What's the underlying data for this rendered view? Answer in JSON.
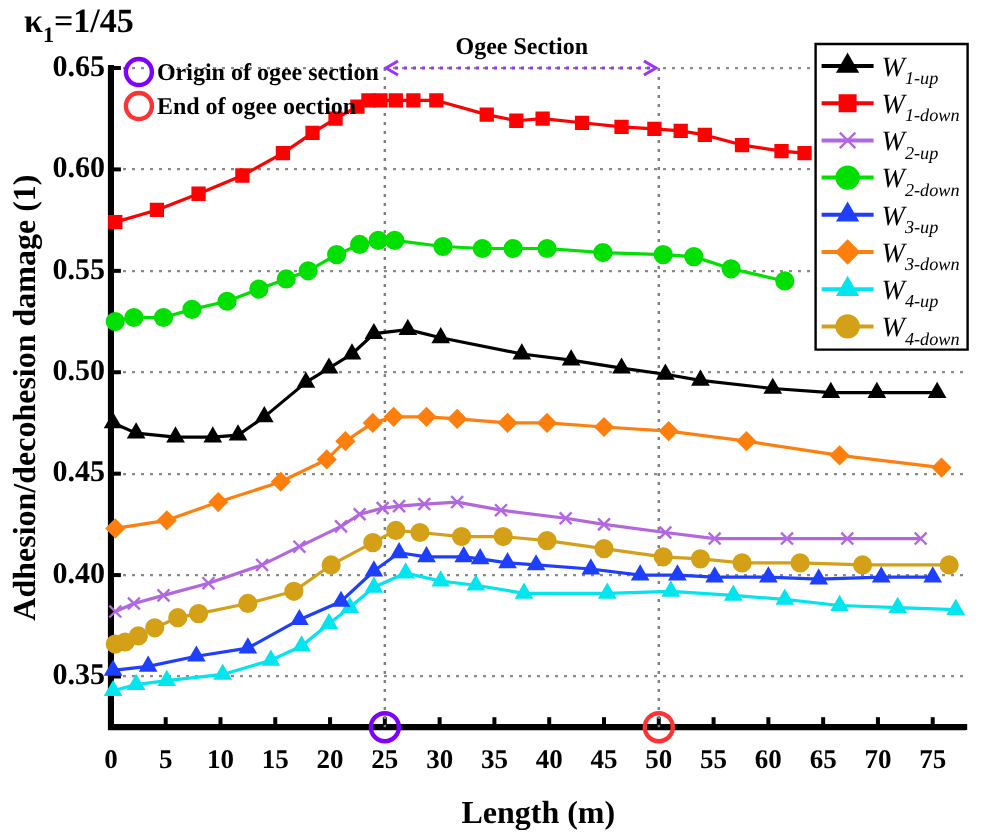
{
  "chart_data": {
    "type": "line",
    "xlabel": "Length (m)",
    "ylabel": "Adhesion/decohesion damage (1)",
    "xlim": [
      0,
      78
    ],
    "xticks": [
      0,
      5,
      10,
      15,
      20,
      25,
      30,
      35,
      40,
      45,
      50,
      55,
      60,
      65,
      70,
      75
    ],
    "ylim": [
      0.325,
      0.65
    ],
    "yticks": [
      0.35,
      {
        "value": 0.4,
        "label": "0.40"
      },
      0.45,
      {
        "value": 0.5,
        "label": "0.50"
      },
      0.55,
      {
        "value": 0.6,
        "label": "0.60"
      },
      0.65
    ],
    "grid": "y",
    "legend": "top right",
    "line_style": "solid",
    "annotations": [
      "κ$_{1}$=1/45",
      "Ogee Section"
    ],
    "ref_lines": [
      {
        "axis": "x",
        "value": 25,
        "line_style": "dotted",
        "color": "#808080"
      },
      {
        "axis": "x",
        "value": 50,
        "line_style": "dotted",
        "color": "#808080"
      }
    ],
    "series": [
      {
        "name": "W$_{1-up}$",
        "color": "#000000",
        "marker": "triangle",
        "x": [
          0.2,
          2.3,
          5.9,
          9.3,
          11.6,
          14,
          17.8,
          19.9,
          22,
          24,
          27.1,
          30.1,
          37.5,
          42,
          46.6,
          50.6,
          53.8,
          60.4,
          65.7,
          69.9,
          75.4
        ],
        "values": [
          0.475,
          0.47,
          0.468,
          0.468,
          0.469,
          0.478,
          0.495,
          0.502,
          0.509,
          0.519,
          0.521,
          0.517,
          0.509,
          0.506,
          0.502,
          0.499,
          0.496,
          0.492,
          0.49,
          0.49,
          0.49
        ]
      },
      {
        "name": "W$_{1-down}$",
        "color": "#ff0000",
        "marker": "square",
        "x": [
          0.4,
          4.2,
          8,
          12,
          15.7,
          18.4,
          20.5,
          22.5,
          23.5,
          24.6,
          26,
          27.6,
          29.7,
          34.3,
          37,
          39.4,
          43,
          46.6,
          49.6,
          52,
          54.2,
          57.6,
          61.2,
          63.3
        ],
        "values": [
          0.574,
          0.58,
          0.588,
          0.597,
          0.608,
          0.618,
          0.625,
          0.631,
          0.634,
          0.634,
          0.634,
          0.634,
          0.634,
          0.627,
          0.624,
          0.625,
          0.623,
          0.621,
          0.62,
          0.619,
          0.617,
          0.612,
          0.609,
          0.608
        ]
      },
      {
        "name": "W$_{2-up}$",
        "color": "#b266e0",
        "marker": "cross",
        "x": [
          0.4,
          2.1,
          4.8,
          8.9,
          13.8,
          17.2,
          21,
          22.7,
          24.8,
          26.3,
          28.6,
          31.6,
          35.6,
          41.5,
          45,
          50.6,
          55.1,
          61.7,
          67.2,
          73.9
        ],
        "values": [
          0.382,
          0.386,
          0.39,
          0.396,
          0.405,
          0.414,
          0.424,
          0.43,
          0.433,
          0.434,
          0.435,
          0.436,
          0.432,
          0.428,
          0.425,
          0.421,
          0.418,
          0.418,
          0.418,
          0.418
        ]
      },
      {
        "name": "W$_{2-down}$",
        "color": "#00e000",
        "marker": "circle",
        "x": [
          0.4,
          2.1,
          4.8,
          7.4,
          10.6,
          13.5,
          16,
          18,
          20.6,
          22.7,
          24.4,
          25.9,
          30.3,
          33.9,
          36.7,
          39.8,
          44.9,
          50.4,
          53.2,
          56.6,
          61.5
        ],
        "values": [
          0.525,
          0.527,
          0.527,
          0.531,
          0.535,
          0.541,
          0.546,
          0.55,
          0.558,
          0.563,
          0.565,
          0.565,
          0.562,
          0.561,
          0.561,
          0.561,
          0.559,
          0.558,
          0.557,
          0.551,
          0.545
        ]
      },
      {
        "name": "W$_{3-up}$",
        "color": "#1f3fff",
        "marker": "triangle",
        "x": [
          0.2,
          3.4,
          7.8,
          12.5,
          17.2,
          21,
          24,
          26.3,
          28.8,
          32.2,
          33.7,
          36.2,
          38.8,
          43.8,
          48.3,
          51.7,
          55.1,
          60,
          64.6,
          70.3,
          75
        ],
        "values": [
          0.353,
          0.355,
          0.36,
          0.364,
          0.378,
          0.387,
          0.402,
          0.411,
          0.409,
          0.409,
          0.408,
          0.406,
          0.405,
          0.403,
          0.4,
          0.4,
          0.399,
          0.399,
          0.398,
          0.399,
          0.399
        ]
      },
      {
        "name": "W$_{3-down}$",
        "color": "#ff7f0e",
        "marker": "diamond",
        "x": [
          0.4,
          5.1,
          9.8,
          15.5,
          19.7,
          21.4,
          23.9,
          25.8,
          28.8,
          31.6,
          36.2,
          39.8,
          45,
          50.9,
          58,
          66.5,
          75.8
        ],
        "values": [
          0.423,
          0.427,
          0.436,
          0.446,
          0.457,
          0.466,
          0.475,
          0.478,
          0.478,
          0.477,
          0.475,
          0.475,
          0.473,
          0.471,
          0.466,
          0.459,
          0.453
        ]
      },
      {
        "name": "W$_{4-up}$",
        "color": "#00e5ee",
        "marker": "triangle",
        "x": [
          0.2,
          2.3,
          5.1,
          10.2,
          14.6,
          17.4,
          19.9,
          21.8,
          24,
          26.9,
          30.1,
          33.3,
          37.7,
          45.3,
          51.1,
          56.8,
          61.5,
          66.5,
          71.8,
          77.1
        ],
        "values": [
          0.343,
          0.346,
          0.348,
          0.351,
          0.358,
          0.365,
          0.376,
          0.384,
          0.394,
          0.401,
          0.397,
          0.395,
          0.391,
          0.391,
          0.392,
          0.39,
          0.388,
          0.385,
          0.384,
          0.383
        ]
      },
      {
        "name": "W$_{4-down}$",
        "color": "#d4a017",
        "marker": "circle",
        "x": [
          0.4,
          1.3,
          2.5,
          4,
          6.1,
          8,
          12.5,
          16.7,
          20.1,
          23.9,
          26,
          28.2,
          32,
          35.8,
          39.8,
          45,
          50.4,
          53.8,
          57.6,
          62.9,
          68.6,
          76.5
        ],
        "values": [
          0.366,
          0.367,
          0.37,
          0.374,
          0.379,
          0.381,
          0.386,
          0.392,
          0.405,
          0.416,
          0.422,
          0.421,
          0.419,
          0.419,
          0.417,
          0.413,
          0.409,
          0.408,
          0.406,
          0.406,
          0.405,
          0.405
        ]
      },
      {
        "name": "Origin of ogee section",
        "type": "scatter",
        "color": "#8000ff",
        "marker": "circle",
        "x": [
          25
        ],
        "values": [
          0.325
        ]
      },
      {
        "name": "End of ogee oection",
        "type": "scatter",
        "color": "#ff3333",
        "marker": "circle",
        "x": [
          50
        ],
        "values": [
          0.325
        ]
      }
    ]
  }
}
